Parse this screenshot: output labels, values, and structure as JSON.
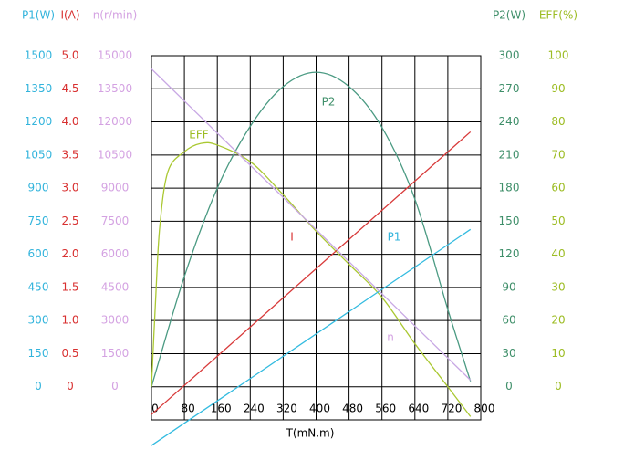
{
  "chart_data": {
    "type": "line",
    "x_label": "T(mN.m)",
    "xlim": [
      0,
      800
    ],
    "xticks": [
      0,
      80,
      160,
      240,
      320,
      400,
      480,
      560,
      640,
      720,
      800
    ],
    "grid": true,
    "y_axes": [
      {
        "name": "P1",
        "label": "P1(W)",
        "side": "left",
        "color": "#33b4dc",
        "lim": [
          -150,
          1500
        ],
        "ticks": [
          0,
          150,
          300,
          450,
          600,
          750,
          900,
          1050,
          1200,
          1350,
          1500
        ]
      },
      {
        "name": "I",
        "label": "I(A)",
        "side": "left",
        "color": "#d83030",
        "lim": [
          -0.5,
          5
        ],
        "ticks": [
          0,
          0.5,
          {
            "value": 1,
            "label": "1.0"
          },
          1.5,
          {
            "value": 2,
            "label": "2.0"
          },
          2.5,
          {
            "value": 3,
            "label": "3.0"
          },
          3.5,
          {
            "value": 4,
            "label": "4.0"
          },
          4.5,
          {
            "value": 5,
            "label": "5.0"
          }
        ]
      },
      {
        "name": "n",
        "label": "n(r/min)",
        "side": "left",
        "color": "#d4a2e2",
        "lim": [
          -1500,
          15000
        ],
        "ticks": [
          0,
          1500,
          3000,
          4500,
          6000,
          7500,
          9000,
          10500,
          12000,
          13500,
          15000
        ]
      },
      {
        "name": "P2",
        "label": "P2(W)",
        "side": "right",
        "color": "#3f8f6a",
        "lim": [
          -30,
          300
        ],
        "ticks": [
          0,
          30,
          60,
          90,
          120,
          150,
          180,
          210,
          240,
          270,
          300
        ]
      },
      {
        "name": "EFF",
        "label": "EFF(%)",
        "side": "right",
        "color": "#9cbc22",
        "lim": [
          -10,
          100
        ],
        "ticks": [
          0,
          10,
          20,
          30,
          40,
          50,
          60,
          70,
          80,
          90,
          100
        ]
      }
    ],
    "series": [
      {
        "name": "P2",
        "axis": "P2",
        "color": "#4a9a82",
        "x": [
          0,
          80,
          160,
          240,
          320,
          400,
          480,
          560,
          640,
          720,
          775
        ],
        "values": [
          0,
          100,
          180,
          236,
          272,
          285,
          272,
          235,
          170,
          70,
          5
        ]
      },
      {
        "name": "EFF",
        "axis": "EFF",
        "color": "#aac832",
        "x": [
          0,
          10,
          20,
          40,
          80,
          120,
          160,
          240,
          320,
          400,
          480,
          560,
          640,
          720,
          775
        ],
        "values": [
          0,
          26,
          48,
          65,
          71,
          73.5,
          73,
          68,
          58,
          47,
          37,
          27,
          13,
          0,
          -9
        ]
      },
      {
        "name": "I",
        "axis": "I",
        "color": "#d83a3a",
        "x": [
          0,
          775
        ],
        "values": [
          -0.42,
          3.85
        ]
      },
      {
        "name": "P1",
        "axis": "P1",
        "color": "#33bbe0",
        "x": [
          0,
          775
        ],
        "values": [
          -266,
          713
        ]
      },
      {
        "name": "n",
        "axis": "n",
        "color": "#c8a8e4",
        "x": [
          0,
          775
        ],
        "values": [
          14400,
          300
        ]
      }
    ]
  }
}
